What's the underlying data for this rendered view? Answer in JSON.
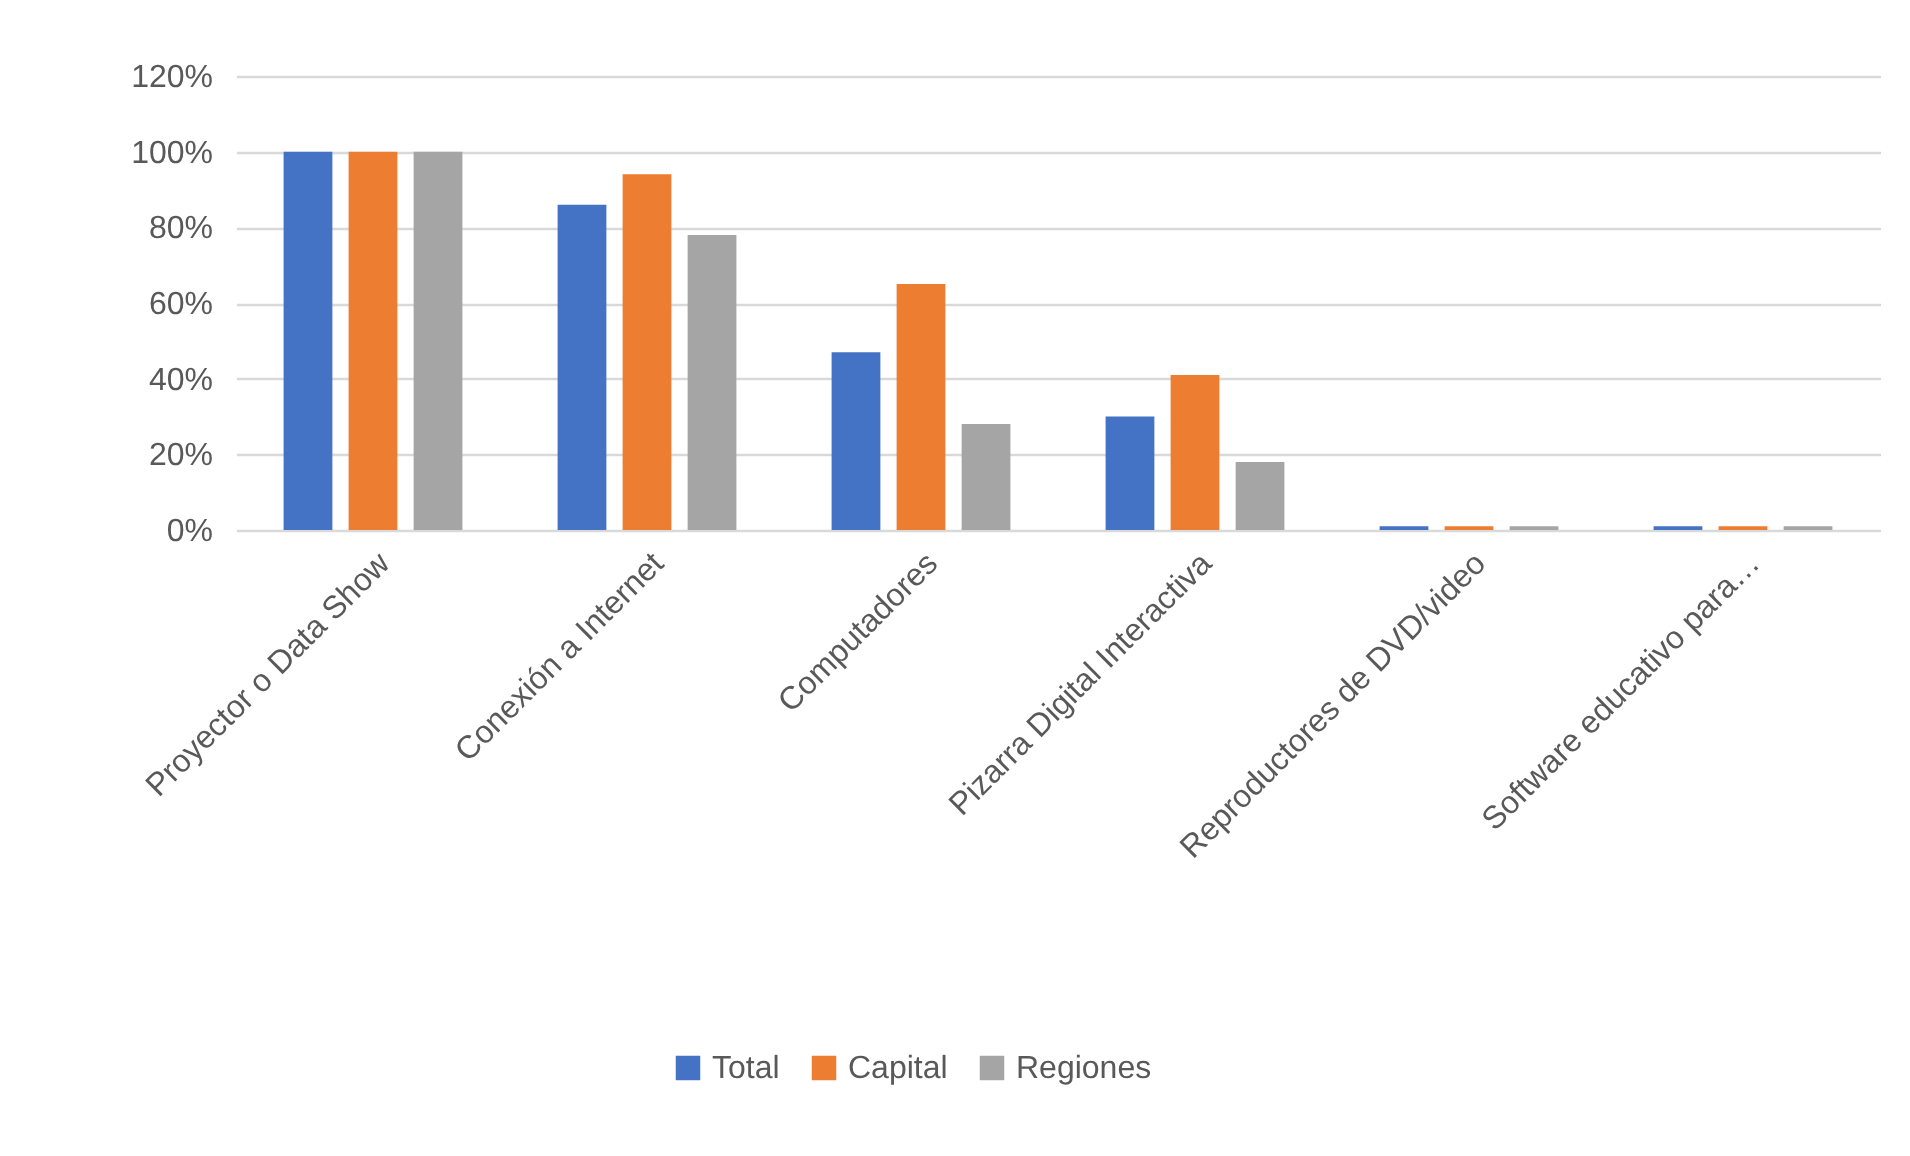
{
  "chart_data": {
    "type": "bar",
    "categories": [
      "Proyector o Data Show",
      "Conexión a Internet",
      "Computadores",
      "Pizarra Digital Interactiva",
      "Reproductores de DVD/video",
      "Software educativo para…"
    ],
    "series": [
      {
        "name": "Total",
        "color": "#4472c4",
        "values": [
          100,
          86,
          47,
          30,
          1,
          1
        ]
      },
      {
        "name": "Capital",
        "color": "#ed7d31",
        "values": [
          100,
          94,
          65,
          41,
          1,
          1
        ]
      },
      {
        "name": "Regiones",
        "color": "#a5a5a5",
        "values": [
          100,
          78,
          28,
          18,
          1,
          1
        ]
      }
    ],
    "ylim": [
      0,
      120
    ],
    "yticks": [
      {
        "value": 0,
        "label": "0%"
      },
      {
        "value": 20,
        "label": "20%"
      },
      {
        "value": 40,
        "label": "40%"
      },
      {
        "value": 60,
        "label": "60%"
      },
      {
        "value": 80,
        "label": "80%"
      },
      {
        "value": 100,
        "label": "100%"
      },
      {
        "value": 120,
        "label": "120%"
      }
    ],
    "grid": "y",
    "legend": "bottom"
  }
}
